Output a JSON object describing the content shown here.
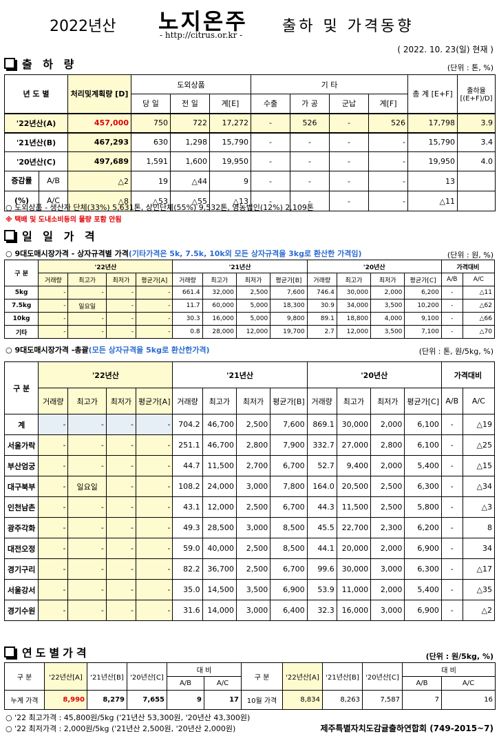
{
  "header": {
    "year": "2022년산",
    "brand": "노지온주",
    "url": "- http://citrus.or.kr -",
    "subject": "출하 및 가격동향",
    "as_of": "( 2022. 10. 23(일) 현재 )"
  },
  "sec1": {
    "title": "출 하 량",
    "unit": "(단위 : 톤, %)",
    "h": {
      "year": "년 도 별",
      "plan": "처리및계획량 [D]",
      "domestic": "도외상품",
      "today": "당 일",
      "prev": "전 일",
      "sum_e": "계[E]",
      "etc": "기 타",
      "export": "수출",
      "process": "가 공",
      "army": "군납",
      "sum_f": "계[F]",
      "total": "총 계 [E+F]",
      "rate": "출하율 [(E+F)/D]"
    },
    "rows": [
      [
        "'22년산(A)",
        "457,000",
        "750",
        "722",
        "17,272",
        "-",
        "526",
        "-",
        "526",
        "17,798",
        "3.9"
      ],
      [
        "'21년산(B)",
        "467,293",
        "630",
        "1,298",
        "15,790",
        "-",
        "-",
        "-",
        "-",
        "15,790",
        "3.4"
      ],
      [
        "'20년산(C)",
        "497,689",
        "1,591",
        "1,600",
        "19,950",
        "-",
        "-",
        "-",
        "-",
        "19,950",
        "4.0"
      ]
    ],
    "inc_label": "증감률",
    "pct_label": "(%)",
    "inc_rows": [
      [
        "A/B",
        "△2",
        "19",
        "△44",
        "9",
        "-",
        "-",
        "-",
        "-",
        "13",
        ""
      ],
      [
        "A/C",
        "△8",
        "△53",
        "△55",
        "△13",
        "-",
        "-",
        "-",
        "-",
        "△11",
        ""
      ]
    ],
    "note1": "도외상품 - 생산자 단체(33%) 5,631톤,   상인단체(55%) 9,532톤,   영농법인(12%) 2,109톤",
    "note2": "※ 택배 및 도내소비등의 물량 포함 안됨"
  },
  "sec2": {
    "title": "일 일 가 격",
    "t1_title": "9대도매시장가격 - 상자규격별 가격",
    "t1_sub": "(기타가격은 5k, 7.5k, 10k외 모든 상자규격을 3kg로 환산한 가격임)",
    "t1_unit": "(단위 : 원, %)",
    "h": {
      "gubun": "구 분",
      "y22": "'22년산",
      "y21": "'21년산",
      "y20": "'20년산",
      "cmp": "가격대비",
      "vol": "거래량",
      "max": "최고가",
      "min": "최저가",
      "avg_a": "평균가[A]",
      "avg_b": "평균가[B]",
      "avg_c": "평균가[C]",
      "ab": "A/B",
      "ac": "A/C"
    },
    "t1_rows": [
      [
        "5kg",
        "-",
        "-",
        "-",
        "-",
        "661.4",
        "32,000",
        "2,500",
        "7,600",
        "746.4",
        "30,000",
        "2,000",
        "6,200",
        "-",
        "△11"
      ],
      [
        "7.5kg",
        "-",
        "일요일",
        "-",
        "-",
        "11.7",
        "60,000",
        "5,000",
        "18,300",
        "30.9",
        "34,000",
        "3,500",
        "10,200",
        "-",
        "△62"
      ],
      [
        "10kg",
        "-",
        "-",
        "-",
        "-",
        "30.3",
        "16,000",
        "5,000",
        "9,800",
        "89.1",
        "18,800",
        "4,000",
        "9,100",
        "-",
        "△66"
      ],
      [
        "기타",
        "-",
        "-",
        "-",
        "-",
        "0.8",
        "28,000",
        "12,000",
        "19,700",
        "2.7",
        "12,000",
        "3,500",
        "7,100",
        "-",
        "△70"
      ]
    ],
    "t2_title": "9대도매시장가격 -총괄",
    "t2_sub": "(모든 상자규격을 5kg로 환산한가격)",
    "t2_unit": "(단위 : 톤, 원/5kg, %)",
    "t2_rows": [
      [
        "계",
        "-",
        "-",
        "-",
        "-",
        "704.2",
        "46,700",
        "2,500",
        "7,600",
        "869.1",
        "30,000",
        "2,000",
        "6,100",
        "-",
        "△19"
      ],
      [
        "서울가락",
        "-",
        "-",
        "-",
        "-",
        "251.1",
        "46,700",
        "2,800",
        "7,900",
        "332.7",
        "27,000",
        "2,800",
        "6,100",
        "-",
        "△25"
      ],
      [
        "부산엄궁",
        "-",
        "-",
        "-",
        "-",
        "44.7",
        "11,500",
        "2,700",
        "6,700",
        "52.7",
        "9,400",
        "2,000",
        "5,400",
        "-",
        "△15"
      ],
      [
        "대구북부",
        "-",
        "일요일",
        "-",
        "-",
        "108.2",
        "24,000",
        "3,000",
        "7,800",
        "164.0",
        "20,500",
        "2,500",
        "6,300",
        "-",
        "△34"
      ],
      [
        "인천남촌",
        "-",
        "-",
        "-",
        "-",
        "43.1",
        "12,000",
        "2,500",
        "6,700",
        "44.3",
        "11,500",
        "2,500",
        "5,800",
        "-",
        "△3"
      ],
      [
        "광주각화",
        "-",
        "-",
        "-",
        "-",
        "49.3",
        "28,500",
        "3,000",
        "8,500",
        "45.5",
        "22,700",
        "2,300",
        "6,200",
        "-",
        "8"
      ],
      [
        "대전오정",
        "-",
        "-",
        "-",
        "-",
        "59.0",
        "40,000",
        "2,500",
        "8,500",
        "44.1",
        "20,000",
        "2,000",
        "6,900",
        "-",
        "34"
      ],
      [
        "경기구리",
        "-",
        "-",
        "-",
        "-",
        "82.2",
        "36,700",
        "2,500",
        "6,700",
        "99.6",
        "30,000",
        "3,000",
        "6,300",
        "-",
        "△17"
      ],
      [
        "서울강서",
        "-",
        "-",
        "-",
        "-",
        "35.0",
        "14,500",
        "3,500",
        "6,900",
        "53.9",
        "11,000",
        "2,000",
        "5,400",
        "-",
        "△35"
      ],
      [
        "경기수원",
        "-",
        "-",
        "-",
        "-",
        "31.6",
        "14,000",
        "3,000",
        "6,400",
        "32.3",
        "16,000",
        "3,000",
        "6,900",
        "-",
        "△2"
      ]
    ]
  },
  "sec3": {
    "title": "연도별가격",
    "unit": "(단위 : 원/5kg, %)",
    "h": {
      "gubun": "구 분",
      "y22": "'22년산[A]",
      "y21": "'21년산[B]",
      "y20": "'20년산[C]",
      "cmp": "대 비",
      "ab": "A/B",
      "ac": "A/C"
    },
    "row": [
      "누계 가격",
      "8,990",
      "8,279",
      "7,655",
      "9",
      "17",
      "10월 가격",
      "8,834",
      "8,263",
      "7,587",
      "7",
      "16"
    ],
    "f1": "'22 최고가격 : 45,800원/5kg ('21년산 53,300원, '20년산 43,300원)",
    "f2": "'22 최저가격 :  2,000원/5kg ('21년산  2,500원, '20년산  2,000원)",
    "org": "제주특별자치도감귤출하연합회 (749-2015~7)"
  }
}
